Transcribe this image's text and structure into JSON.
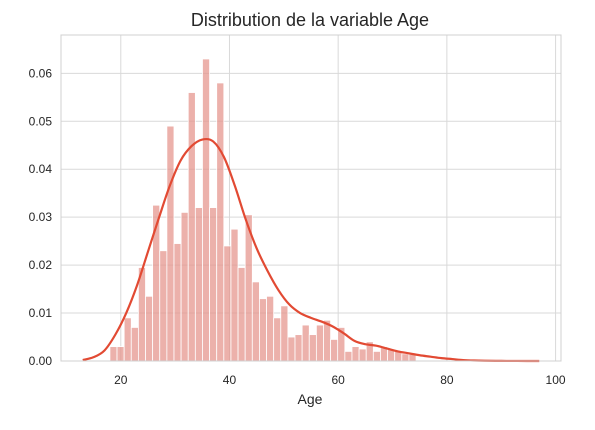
{
  "chart_data": {
    "type": "bar",
    "title": "Distribution de la variable Age",
    "xlabel": "Age",
    "ylabel": "",
    "xlim": [
      9,
      101
    ],
    "ylim": [
      0,
      0.068
    ],
    "x_ticks": [
      20,
      40,
      60,
      80,
      100
    ],
    "y_ticks": [
      0.0,
      0.01,
      0.02,
      0.03,
      0.04,
      0.05,
      0.06
    ],
    "y_tick_labels": [
      "0.00",
      "0.01",
      "0.02",
      "0.03",
      "0.04",
      "0.05",
      "0.06"
    ],
    "grid": true,
    "colors": {
      "bar": "#e5938a",
      "kde": "#e24a33",
      "background": "#ffffff"
    },
    "histogram": {
      "bin_width": 1.31,
      "bin_edges_start": 18.0,
      "values": [
        0.003,
        0.003,
        0.009,
        0.007,
        0.0195,
        0.0135,
        0.0325,
        0.023,
        0.049,
        0.0245,
        0.031,
        0.056,
        0.032,
        0.063,
        0.032,
        0.058,
        0.024,
        0.0275,
        0.0195,
        0.0305,
        0.0165,
        0.013,
        0.0135,
        0.009,
        0.0115,
        0.005,
        0.0055,
        0.0075,
        0.0055,
        0.0075,
        0.0085,
        0.0045,
        0.007,
        0.002,
        0.003,
        0.0025,
        0.004,
        0.002,
        0.003,
        0.0025,
        0.002,
        0.0015,
        0.0015
      ]
    },
    "kde": {
      "x": [
        13,
        15,
        17,
        19,
        21,
        23,
        25,
        27,
        29,
        31,
        33,
        35,
        37,
        39,
        41,
        43,
        45,
        47,
        49,
        51,
        53,
        55,
        57,
        59,
        61,
        63,
        65,
        67,
        69,
        71,
        73,
        75,
        77,
        79,
        81,
        83,
        85,
        87,
        90,
        93,
        97
      ],
      "y": [
        0.0002,
        0.0008,
        0.0022,
        0.0055,
        0.01,
        0.0158,
        0.0228,
        0.0298,
        0.0365,
        0.0418,
        0.0448,
        0.0462,
        0.0458,
        0.0425,
        0.0365,
        0.0295,
        0.0235,
        0.0188,
        0.0148,
        0.0118,
        0.01,
        0.009,
        0.0082,
        0.0072,
        0.0058,
        0.0042,
        0.0035,
        0.0032,
        0.0026,
        0.002,
        0.0016,
        0.0012,
        0.0009,
        0.0006,
        0.0004,
        0.0002,
        0.0001,
        5e-05,
        2e-05,
        1e-05,
        0
      ]
    }
  }
}
